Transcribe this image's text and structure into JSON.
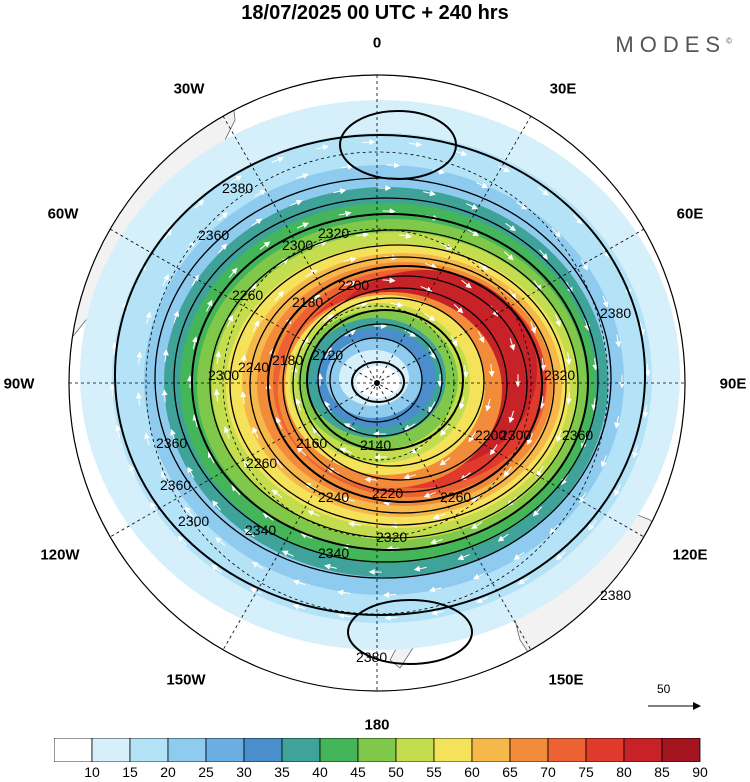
{
  "title": "18/07/2025  00 UTC  + 240 hrs",
  "brand": "MODES",
  "brand_mark": "©",
  "longitude_labels": {
    "lon_0": "0",
    "lon_30e": "30E",
    "lon_60e": "60E",
    "lon_90e": "90E",
    "lon_120e": "120E",
    "lon_150e": "150E",
    "lon_180": "180",
    "lon_150w": "150W",
    "lon_120w": "120W",
    "lon_90w": "90W",
    "lon_60w": "60W",
    "lon_30w": "30W"
  },
  "contour_labels": [
    "2380",
    "2360",
    "2340",
    "2320",
    "2300",
    "2280",
    "2260",
    "2240",
    "2220",
    "2200",
    "2180",
    "2160",
    "2140",
    "2120"
  ],
  "vector_reference": "50",
  "colorbar": {
    "ticks": [
      "10",
      "15",
      "20",
      "25",
      "30",
      "35",
      "40",
      "45",
      "50",
      "55",
      "60",
      "65",
      "70",
      "75",
      "80",
      "85",
      "90"
    ],
    "colors": [
      "#ffffff",
      "#d6f0fb",
      "#b4e3f8",
      "#8ecbee",
      "#6aaee2",
      "#4a8fcc",
      "#3fa39a",
      "#45b55a",
      "#7fc84a",
      "#c3dd4e",
      "#f5e25b",
      "#f6b84a",
      "#f28c3a",
      "#ec6232",
      "#df3a2c",
      "#c72228",
      "#a3151f"
    ]
  }
}
